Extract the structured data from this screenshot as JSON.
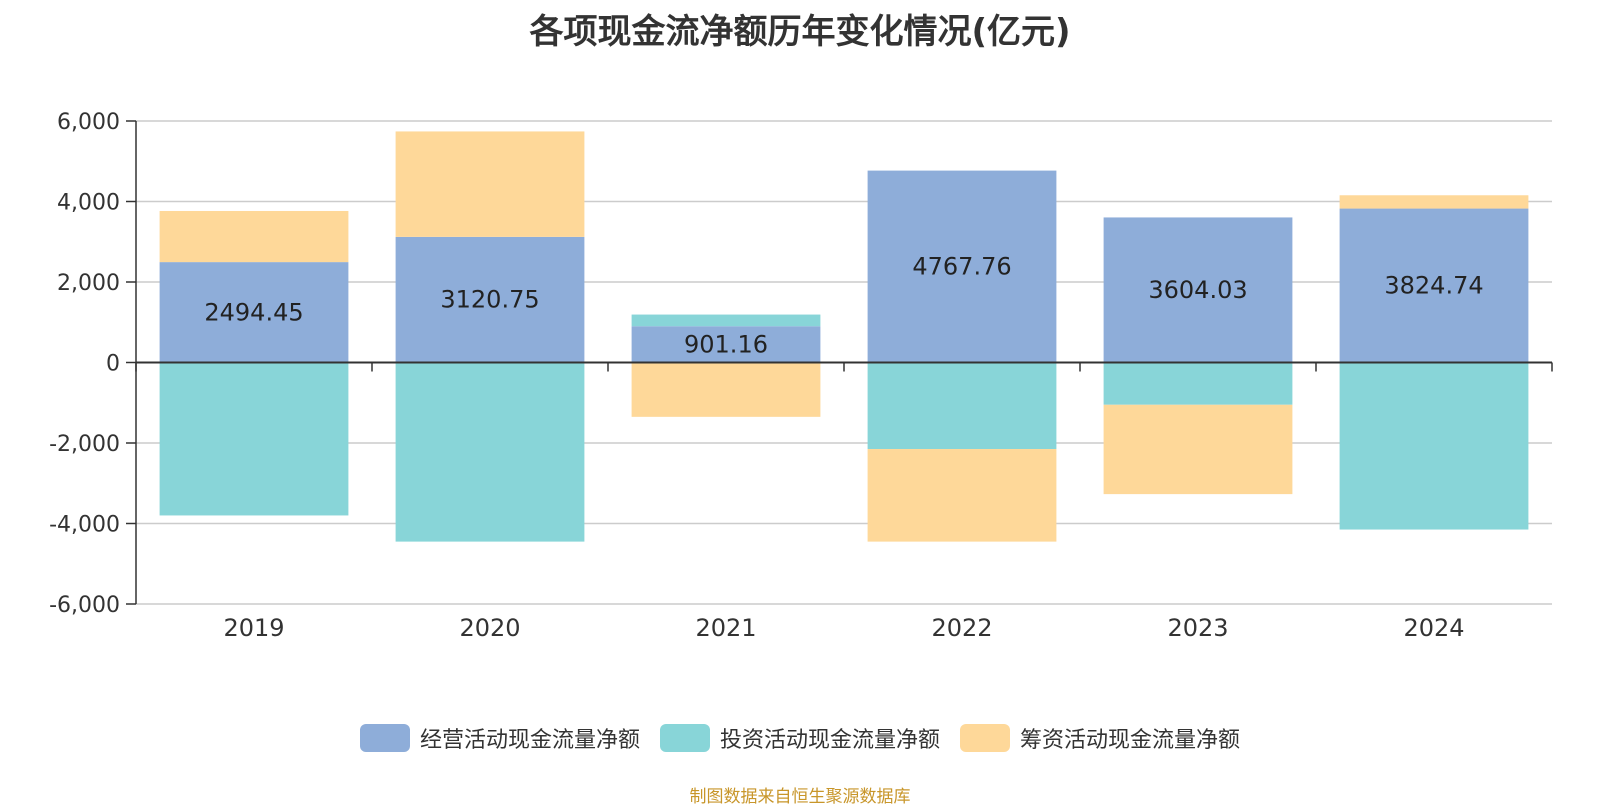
{
  "title": "各项现金流净额历年变化情况(亿元)",
  "source": "制图数据来自恒生聚源数据库",
  "chart_data": {
    "type": "bar",
    "stacked": true,
    "title": "各项现金流净额历年变化情况(亿元)",
    "categories": [
      "2019",
      "2020",
      "2021",
      "2022",
      "2023",
      "2024"
    ],
    "ylim": [
      -6000,
      6000
    ],
    "yticks": [
      6000,
      4000,
      2000,
      0,
      -2000,
      -4000,
      -6000
    ],
    "ytick_labels": [
      "6,000",
      "4,000",
      "2,000",
      "0",
      "-2,000",
      "-4,000",
      "-6,000"
    ],
    "grid": true,
    "legend_position": "bottom",
    "series": [
      {
        "name": "经营活动现金流量净额",
        "color": "#8eadd9",
        "values": [
          2494.45,
          3120.75,
          901.16,
          4767.76,
          3604.03,
          3824.74
        ],
        "labels": [
          "2494.45",
          "3120.75",
          "901.16",
          "4767.76",
          "3604.03",
          "3824.74"
        ]
      },
      {
        "name": "投资活动现金流量净额",
        "color": "#88d5d8",
        "values": [
          -3800,
          -4450,
          290,
          -2150,
          -1050,
          -4150
        ]
      },
      {
        "name": "筹资活动现金流量净额",
        "color": "#fed899",
        "values": [
          1270,
          2620,
          -1350,
          -2300,
          -2220,
          330
        ]
      }
    ]
  }
}
